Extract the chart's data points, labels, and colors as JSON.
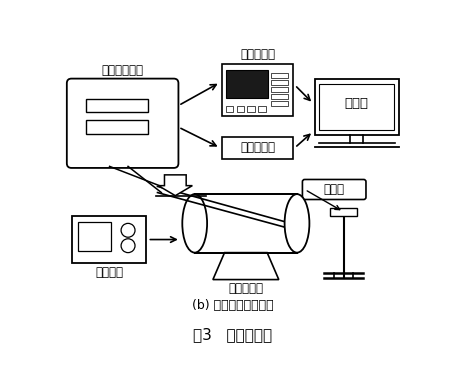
{
  "title": "图3   高温测试台",
  "subtitle": "(b) 高温测试系统框图",
  "bg_color": "#ffffff",
  "line_color": "#000000",
  "labels": {
    "chip": "芯片与参考片",
    "network_analyzer": "网络分析仪",
    "strain_module": "应变仪模块",
    "computer": "计算机",
    "thermometer": "测温仪",
    "temp_controller": "温控仪表",
    "ring_heater": "环形加热器"
  },
  "figsize": [
    4.54,
    3.92
  ],
  "dpi": 100
}
